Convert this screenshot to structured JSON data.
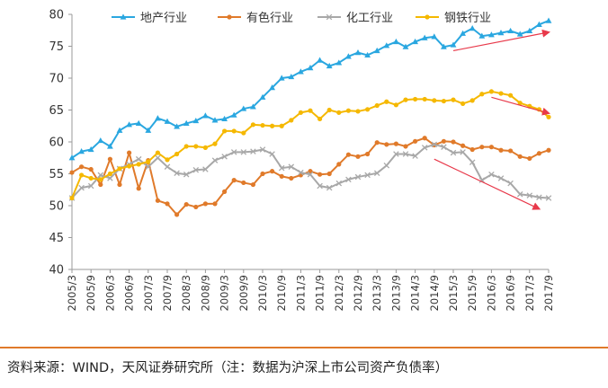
{
  "source_note": "资料来源：WIND，天风证券研究所（注：数据为沪深上市公司资产负债率）",
  "chart_data": {
    "type": "line",
    "title": "",
    "xlabel": "",
    "ylabel": "",
    "ylim": [
      40,
      80
    ],
    "yticks": [
      40,
      45,
      50,
      55,
      60,
      65,
      70,
      75,
      80
    ],
    "grid": false,
    "legend_position": "top",
    "x": [
      "2005/3",
      "2005/6",
      "2005/9",
      "2005/12",
      "2006/3",
      "2006/6",
      "2006/9",
      "2006/12",
      "2007/3",
      "2007/6",
      "2007/9",
      "2007/12",
      "2008/3",
      "2008/6",
      "2008/9",
      "2008/12",
      "2009/3",
      "2009/6",
      "2009/9",
      "2009/12",
      "2010/3",
      "2010/6",
      "2010/9",
      "2010/12",
      "2011/3",
      "2011/6",
      "2011/9",
      "2011/12",
      "2012/3",
      "2012/6",
      "2012/9",
      "2012/12",
      "2013/3",
      "2013/6",
      "2013/9",
      "2013/12",
      "2014/3",
      "2014/6",
      "2014/9",
      "2014/12",
      "2015/3",
      "2015/6",
      "2015/9",
      "2015/12",
      "2016/3",
      "2016/6",
      "2016/9",
      "2016/12",
      "2017/3",
      "2017/6",
      "2017/9"
    ],
    "xtick_labels": [
      "2005/3",
      "2005/9",
      "2006/3",
      "2006/9",
      "2007/3",
      "2007/9",
      "2008/3",
      "2008/9",
      "2009/3",
      "2009/9",
      "2010/3",
      "2010/9",
      "2011/3",
      "2011/9",
      "2012/3",
      "2012/9",
      "2013/3",
      "2013/9",
      "2014/3",
      "2014/9",
      "2015/3",
      "2015/9",
      "2016/3",
      "2016/9",
      "2017/3",
      "2017/9"
    ],
    "series": [
      {
        "name": "地产行业",
        "color": "#2aa7e0",
        "marker": "triangle",
        "values": [
          57.5,
          58.5,
          58.8,
          60.2,
          59.3,
          61.8,
          62.7,
          62.9,
          61.8,
          63.7,
          63.2,
          62.4,
          62.9,
          63.3,
          64.1,
          63.4,
          63.6,
          64.2,
          65.2,
          65.5,
          67.0,
          68.5,
          70.0,
          70.2,
          71.0,
          71.6,
          72.8,
          71.9,
          72.4,
          73.4,
          74.0,
          73.6,
          74.3,
          75.1,
          75.7,
          74.9,
          75.7,
          76.3,
          76.5,
          74.9,
          75.2,
          77.0,
          77.8,
          76.6,
          76.8,
          77.1,
          77.4,
          76.9,
          77.4,
          78.4,
          79.0
        ]
      },
      {
        "name": "有色行业",
        "color": "#e07a2a",
        "marker": "circle",
        "values": [
          55.2,
          56.1,
          55.7,
          53.3,
          57.3,
          53.3,
          58.3,
          52.7,
          57.1,
          50.8,
          50.3,
          48.6,
          50.2,
          49.8,
          50.3,
          50.3,
          52.2,
          54.0,
          53.6,
          53.3,
          55.0,
          55.4,
          54.6,
          54.3,
          54.8,
          55.4,
          54.9,
          55.0,
          56.5,
          58.0,
          57.7,
          58.1,
          59.9,
          59.6,
          59.7,
          59.3,
          60.1,
          60.6,
          59.5,
          60.1,
          60.0,
          59.4,
          58.8,
          59.2,
          59.2,
          58.7,
          58.6,
          57.7,
          57.4,
          58.2,
          58.7
        ]
      },
      {
        "name": "化工行业",
        "color": "#a8a8a8",
        "marker": "x",
        "values": [
          51.2,
          52.8,
          53.1,
          54.8,
          54.3,
          55.8,
          56.5,
          57.3,
          56.1,
          57.5,
          56.1,
          55.1,
          54.9,
          55.6,
          55.7,
          57.1,
          57.7,
          58.4,
          58.4,
          58.5,
          58.8,
          58.1,
          55.9,
          56.1,
          55.2,
          54.9,
          53.1,
          52.8,
          53.5,
          54.1,
          54.5,
          54.8,
          55.1,
          56.3,
          58.1,
          58.1,
          57.8,
          59.1,
          59.6,
          59.2,
          58.3,
          58.4,
          56.8,
          54.0,
          54.9,
          54.3,
          53.5,
          51.8,
          51.6,
          51.3,
          51.2
        ]
      },
      {
        "name": "钢铁行业",
        "color": "#f5b800",
        "marker": "circle",
        "values": [
          51.2,
          54.8,
          54.3,
          54.1,
          55.0,
          55.8,
          56.2,
          56.5,
          56.9,
          58.3,
          57.2,
          58.1,
          59.3,
          59.3,
          59.1,
          59.7,
          61.7,
          61.7,
          61.4,
          62.7,
          62.6,
          62.5,
          62.5,
          63.4,
          64.6,
          64.9,
          63.6,
          65.0,
          64.6,
          64.9,
          64.8,
          65.1,
          65.7,
          66.3,
          65.8,
          66.6,
          66.7,
          66.7,
          66.5,
          66.4,
          66.6,
          66.0,
          66.5,
          67.5,
          67.9,
          67.6,
          67.3,
          66.1,
          65.6,
          65.1,
          63.9
        ]
      }
    ],
    "annotations": [
      {
        "type": "arrow",
        "color": "#e8394a",
        "from": [
          "2015/3",
          74.3
        ],
        "to": [
          "2017/9",
          77.2
        ]
      },
      {
        "type": "arrow",
        "color": "#e8394a",
        "from": [
          "2016/3",
          67.0
        ],
        "to": [
          "2017/9",
          64.5
        ]
      },
      {
        "type": "arrow",
        "color": "#e8394a",
        "from": [
          "2014/9",
          57.3
        ],
        "to": [
          "2017/6",
          49.5
        ]
      }
    ]
  }
}
